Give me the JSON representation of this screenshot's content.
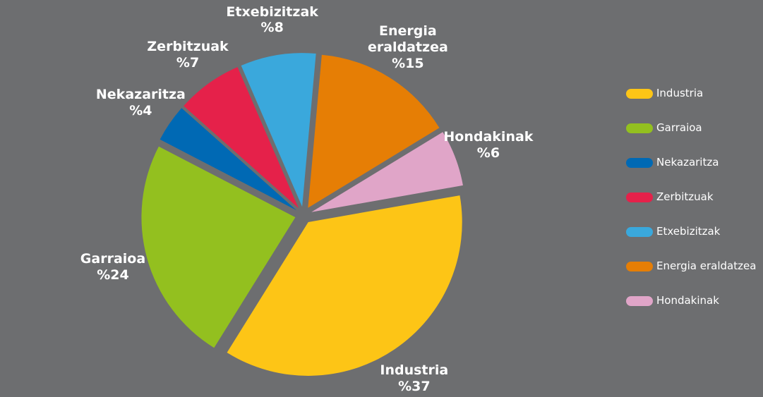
{
  "chart_data": {
    "type": "pie",
    "categories": [
      "Industria",
      "Garraioa",
      "Nekazaritza",
      "Zerbitzuak",
      "Etxebizitzak",
      "Energia eraldatzea",
      "Hondakinak"
    ],
    "values": [
      37,
      24,
      4,
      7,
      8,
      15,
      6
    ],
    "value_labels": [
      "%37",
      "%24",
      "%4",
      "%7",
      "%8",
      "%15",
      "%6"
    ],
    "colors": [
      "#fdc516",
      "#93c01f",
      "#0069b4",
      "#e5214a",
      "#3aa8dc",
      "#e67e05",
      "#e0a5c8"
    ],
    "legend": "right"
  }
}
